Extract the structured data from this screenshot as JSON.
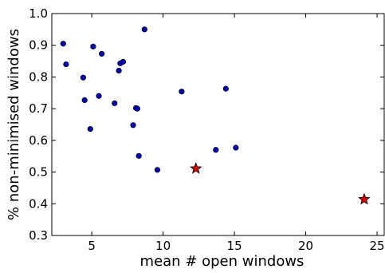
{
  "chart_data": {
    "type": "scatter",
    "title": "",
    "xlabel": "mean # open windows",
    "ylabel": "% non-minimised windows",
    "xlim": [
      2.2,
      25.5
    ],
    "ylim": [
      0.3,
      1.0
    ],
    "x_ticks": [
      5,
      10,
      15,
      20,
      25
    ],
    "y_ticks": [
      0.3,
      0.4,
      0.5,
      0.6,
      0.7,
      0.8,
      0.9,
      1.0
    ],
    "x_tick_labels": [
      "5",
      "10",
      "15",
      "20",
      "25"
    ],
    "y_tick_labels": [
      "0.3",
      "0.4",
      "0.5",
      "0.6",
      "0.7",
      "0.8",
      "0.9",
      "1.0"
    ],
    "grid": false,
    "legend": "none",
    "series": [
      {
        "marker": "circle",
        "color": "#0000bf",
        "points": [
          {
            "x": 3.0,
            "y": 0.905
          },
          {
            "x": 3.2,
            "y": 0.84
          },
          {
            "x": 4.4,
            "y": 0.798
          },
          {
            "x": 4.5,
            "y": 0.727
          },
          {
            "x": 4.9,
            "y": 0.636
          },
          {
            "x": 5.1,
            "y": 0.896
          },
          {
            "x": 5.5,
            "y": 0.74
          },
          {
            "x": 5.7,
            "y": 0.873
          },
          {
            "x": 6.6,
            "y": 0.717
          },
          {
            "x": 6.9,
            "y": 0.82
          },
          {
            "x": 7.0,
            "y": 0.843
          },
          {
            "x": 7.2,
            "y": 0.848
          },
          {
            "x": 7.9,
            "y": 0.648
          },
          {
            "x": 8.1,
            "y": 0.702
          },
          {
            "x": 8.2,
            "y": 0.7
          },
          {
            "x": 8.3,
            "y": 0.551
          },
          {
            "x": 8.7,
            "y": 0.95
          },
          {
            "x": 9.6,
            "y": 0.507
          },
          {
            "x": 11.3,
            "y": 0.754
          },
          {
            "x": 13.7,
            "y": 0.57
          },
          {
            "x": 14.4,
            "y": 0.763
          },
          {
            "x": 15.1,
            "y": 0.577
          }
        ]
      },
      {
        "marker": "star",
        "color": "#d40000",
        "points": [
          {
            "x": 12.3,
            "y": 0.511
          },
          {
            "x": 24.1,
            "y": 0.414
          }
        ]
      }
    ]
  }
}
